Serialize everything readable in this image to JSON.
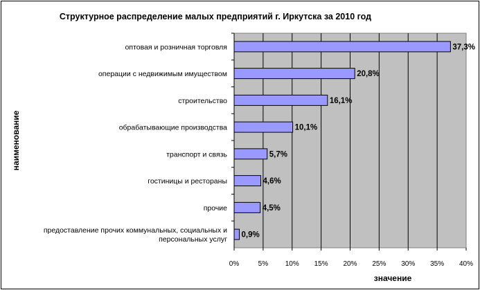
{
  "chart_data": {
    "type": "bar",
    "orientation": "horizontal",
    "title": "Структурное распределение малых предприятий г. Иркутска за 2010 год",
    "xlabel": "значение",
    "ylabel": "наименование",
    "xlim": [
      0,
      40
    ],
    "x_ticks": [
      "0%",
      "5%",
      "10%",
      "15%",
      "20%",
      "25%",
      "30%",
      "35%",
      "40%"
    ],
    "grid": "vertical",
    "legend": "none",
    "bar_color": "#9999FF",
    "plot_background": "#C0C0C0",
    "categories": [
      [
        "оптовая и розничная торговля"
      ],
      [
        "операции с недвижимым имуществом"
      ],
      [
        "строительство"
      ],
      [
        "обрабатывающие производства"
      ],
      [
        "транспорт и связь"
      ],
      [
        "гостиницы и рестораны"
      ],
      [
        "прочие"
      ],
      [
        "предоставление прочих коммунальных, социальных и",
        "персональных услуг"
      ]
    ],
    "values": [
      37.3,
      20.8,
      16.1,
      10.1,
      5.7,
      4.6,
      4.5,
      0.9
    ],
    "value_labels": [
      "37,3%",
      "20,8%",
      "16,1%",
      "10,1%",
      "5,7%",
      "4,6%",
      "4,5%",
      "0,9%"
    ]
  }
}
